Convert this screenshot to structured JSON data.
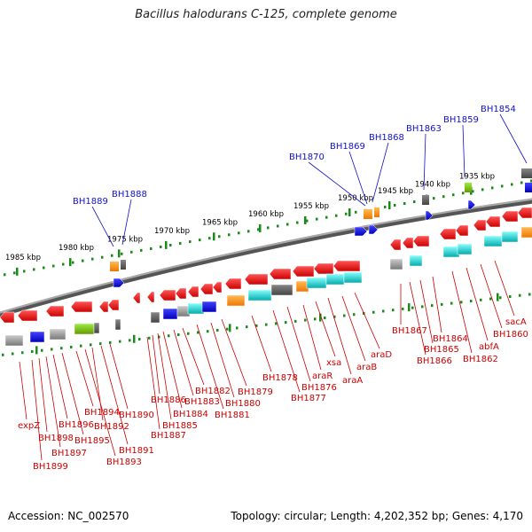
{
  "title": "Bacillus halodurans C-125, complete genome",
  "footer": {
    "accession": "Accession: NC_002570",
    "topology": "Topology: circular; Length: 4,202,352 bp; Genes: 4,170"
  },
  "colors": {
    "forward_gene": "#ee1111",
    "reverse_gene": "#ee1111",
    "top_label": "#1111cc",
    "bottom_label": "#cc0000",
    "tick": "#1a8a1a",
    "backbone": "#777777"
  },
  "kbp_ticks": [
    "1985 kbp",
    "1980 kbp",
    "1975 kbp",
    "1970 kbp",
    "1965 kbp",
    "1960 kbp",
    "1955 kbp",
    "1950 kbp",
    "1945 kbp",
    "1940 kbp",
    "1935 kbp"
  ],
  "top_labels": [
    "BH1889",
    "BH1888",
    "BH1870",
    "BH1869",
    "BH1868",
    "BH1863",
    "BH1859",
    "BH1854"
  ],
  "bottom_labels": [
    "expZ",
    "BH1899",
    "BH1898",
    "BH1897",
    "BH1896",
    "BH1895",
    "BH1894",
    "BH1893",
    "BH1892",
    "BH1891",
    "BH1890",
    "BH1887",
    "BH1886",
    "BH1885",
    "BH1884",
    "BH1883",
    "BH1882",
    "BH1881",
    "BH1880",
    "BH1879",
    "BH1878",
    "BH1877",
    "BH1876",
    "araR",
    "xsa",
    "araA",
    "araB",
    "araD",
    "BH1867",
    "BH1866",
    "BH1865",
    "BH1864",
    "BH1862",
    "abfA",
    "BH1860",
    "sacA"
  ]
}
